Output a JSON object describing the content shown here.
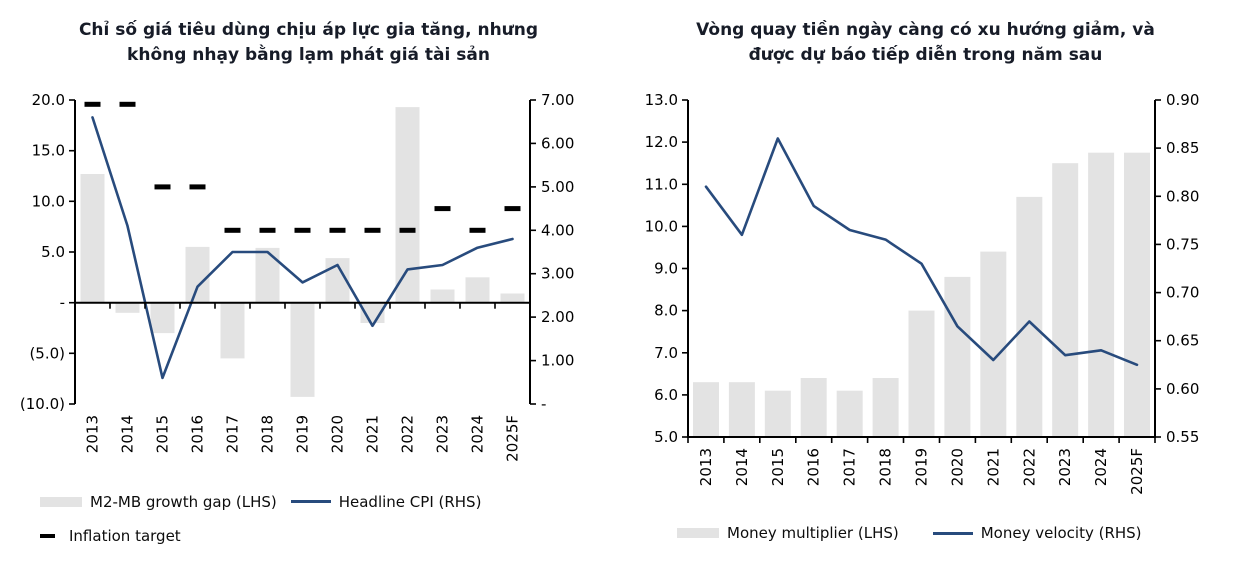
{
  "colors": {
    "bar_fill": "#e3e3e3",
    "line": "#284b7d",
    "target_dash": "#000000",
    "axis": "#000000",
    "title_text": "#171c28",
    "background": "#ffffff"
  },
  "chart_data": [
    {
      "type": "bar",
      "title": "Chỉ số giá tiêu dùng chịu áp lực gia tăng, nhưng không nhạy bằng lạm phát giá tài sản",
      "categories": [
        "2013",
        "2014",
        "2015",
        "2016",
        "2017",
        "2018",
        "2019",
        "2020",
        "2021",
        "2022",
        "2023",
        "2024",
        "2025F"
      ],
      "series": [
        {
          "name": "M2-MB growth gap (LHS)",
          "type": "bar",
          "axis": "left",
          "values": [
            12.7,
            -1.0,
            -3.0,
            5.5,
            -5.5,
            5.4,
            -9.3,
            4.4,
            -2.0,
            19.3,
            1.3,
            2.5,
            0.9
          ]
        },
        {
          "name": "Headline CPI (RHS)",
          "type": "line",
          "axis": "right",
          "values": [
            6.6,
            4.1,
            0.6,
            2.7,
            3.5,
            3.5,
            2.8,
            3.2,
            1.8,
            3.1,
            3.2,
            3.6,
            3.8
          ]
        },
        {
          "name": "Inflation target",
          "type": "dash",
          "axis": "right",
          "values": [
            6.9,
            6.9,
            5.0,
            5.0,
            4.0,
            4.0,
            4.0,
            4.0,
            4.0,
            4.0,
            4.5,
            4.0,
            4.5
          ]
        }
      ],
      "left_axis": {
        "range": [
          -10,
          20
        ],
        "tick_values": [
          20,
          15,
          10,
          5,
          0,
          -5,
          -10
        ],
        "tick_labels": [
          "20.0",
          "15.0",
          "10.0",
          "5.0",
          "-",
          "(5.0)",
          "(10.0)"
        ]
      },
      "right_axis": {
        "range": [
          0,
          7
        ],
        "tick_values": [
          7,
          6,
          5,
          4,
          3,
          2,
          1,
          0
        ],
        "tick_labels": [
          "7.00",
          "6.00",
          "5.00",
          "4.00",
          "3.00",
          "2.00",
          "1.00",
          "-"
        ]
      },
      "grid": "off",
      "legend_position": "bottom"
    },
    {
      "type": "bar",
      "title": "Vòng quay tiền ngày càng có xu hướng giảm, và được dự báo tiếp diễn trong năm sau",
      "categories": [
        "2013",
        "2014",
        "2015",
        "2016",
        "2017",
        "2018",
        "2019",
        "2020",
        "2021",
        "2022",
        "2023",
        "2024",
        "2025F"
      ],
      "series": [
        {
          "name": "Money multiplier (LHS)",
          "type": "bar",
          "axis": "left",
          "values": [
            6.3,
            6.3,
            6.1,
            6.4,
            6.1,
            6.4,
            8.0,
            8.8,
            9.4,
            10.7,
            11.5,
            11.75,
            11.75
          ]
        },
        {
          "name": "Money velocity (RHS)",
          "type": "line",
          "axis": "right",
          "values": [
            0.81,
            0.76,
            0.86,
            0.79,
            0.765,
            0.755,
            0.73,
            0.665,
            0.63,
            0.67,
            0.635,
            0.64,
            0.625
          ]
        }
      ],
      "left_axis": {
        "range": [
          5,
          13
        ],
        "tick_values": [
          13,
          12,
          11,
          10,
          9,
          8,
          7,
          6,
          5
        ],
        "tick_labels": [
          "13.0",
          "12.0",
          "11.0",
          "10.0",
          "9.0",
          "8.0",
          "7.0",
          "6.0",
          "5.0"
        ]
      },
      "right_axis": {
        "range": [
          0.55,
          0.9
        ],
        "tick_values": [
          0.9,
          0.85,
          0.8,
          0.75,
          0.7,
          0.65,
          0.6,
          0.55
        ],
        "tick_labels": [
          "0.90",
          "0.85",
          "0.80",
          "0.75",
          "0.70",
          "0.65",
          "0.60",
          "0.55"
        ]
      },
      "grid": "off",
      "legend_position": "bottom"
    }
  ]
}
